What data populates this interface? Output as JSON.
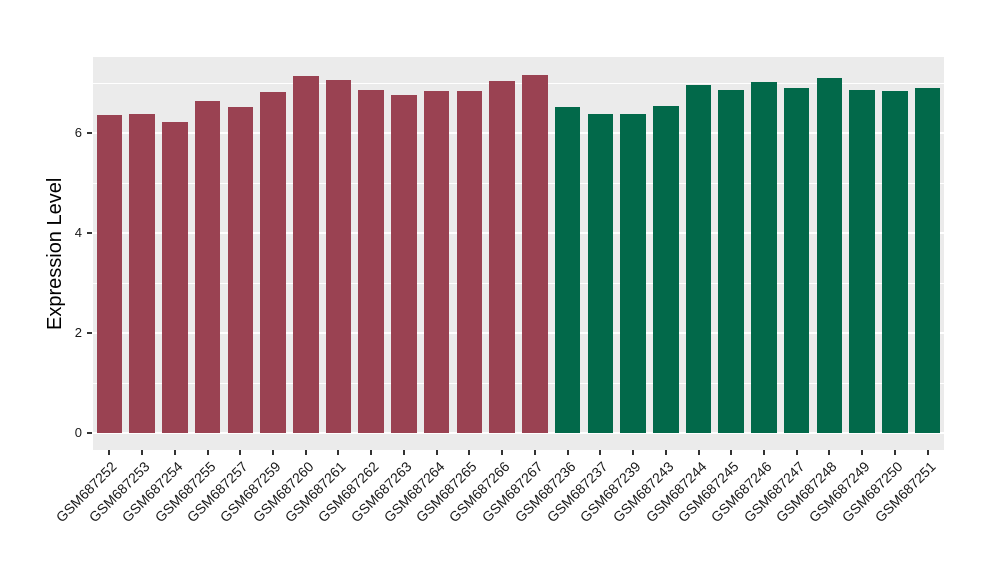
{
  "chart_data": {
    "type": "bar",
    "title": "",
    "xlabel": "",
    "ylabel": "Expression Level",
    "categories": [
      "GSM687252",
      "GSM687253",
      "GSM687254",
      "GSM687255",
      "GSM687257",
      "GSM687259",
      "GSM687260",
      "GSM687261",
      "GSM687262",
      "GSM687263",
      "GSM687264",
      "GSM687265",
      "GSM687266",
      "GSM687267",
      "GSM687236",
      "GSM687237",
      "GSM687239",
      "GSM687243",
      "GSM687244",
      "GSM687245",
      "GSM687246",
      "GSM687247",
      "GSM687248",
      "GSM687249",
      "GSM687250",
      "GSM687251"
    ],
    "values": [
      6.37,
      6.39,
      6.22,
      6.65,
      6.53,
      6.82,
      7.15,
      7.06,
      6.87,
      6.76,
      6.84,
      6.84,
      7.05,
      7.17,
      6.52,
      6.39,
      6.39,
      6.54,
      6.97,
      6.86,
      7.02,
      6.91,
      7.1,
      6.86,
      6.84,
      6.9
    ],
    "groups": [
      "A",
      "A",
      "A",
      "A",
      "A",
      "A",
      "A",
      "A",
      "A",
      "A",
      "A",
      "A",
      "A",
      "A",
      "B",
      "B",
      "B",
      "B",
      "B",
      "B",
      "B",
      "B",
      "B",
      "B",
      "B",
      "B"
    ],
    "group_colors": {
      "A": "#9A4252",
      "B": "#02694A"
    },
    "yticks": [
      0,
      2,
      4,
      6
    ],
    "ytick_labels": [
      "0",
      "2",
      "4",
      "6"
    ],
    "minor_gridlines": [
      1,
      3,
      5,
      7
    ],
    "ylim": [
      -0.34,
      7.52
    ],
    "bar_width_ratio": 0.78,
    "legend": "none",
    "grid": "on",
    "panel_bg": "#EBEBEB",
    "grid_color": "#FFFFFF",
    "tick_color": "#333333",
    "label_color": "#1A1A1A"
  }
}
